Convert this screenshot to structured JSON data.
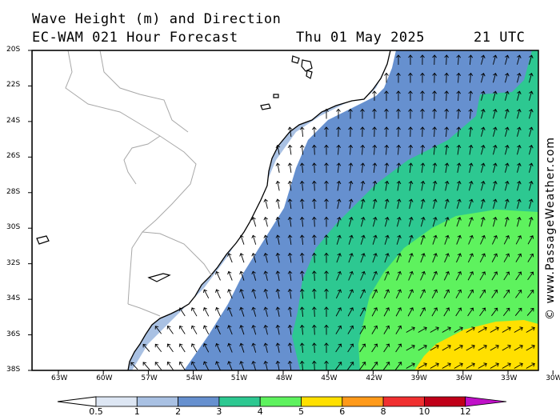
{
  "header": {
    "line1": "Wave Height (m) and Direction",
    "line2_left": "EC-WAM 021 Hour Forecast",
    "line2_date": "Thu 01 May 2025",
    "line2_time": "21 UTC"
  },
  "axes": {
    "lat_labels": [
      "20S",
      "22S",
      "24S",
      "26S",
      "28S",
      "30S",
      "32S",
      "34S",
      "36S",
      "38S"
    ],
    "lon_labels": [
      "63W",
      "60W",
      "57W",
      "54W",
      "51W",
      "48W",
      "45W",
      "42W",
      "39W",
      "36W",
      "33W",
      "30W"
    ]
  },
  "colorbar": {
    "labels": [
      "0.5",
      "1",
      "2",
      "3",
      "4",
      "5",
      "6",
      "8",
      "10",
      "12"
    ],
    "colors": [
      "#dde6f3",
      "#a9c1e3",
      "#6690cf",
      "#2dc891",
      "#5ef25e",
      "#ffe000",
      "#ff9a1a",
      "#f03030",
      "#c00018",
      "#c010c8"
    ]
  },
  "copyright": "© www.PassageWeather.com"
}
